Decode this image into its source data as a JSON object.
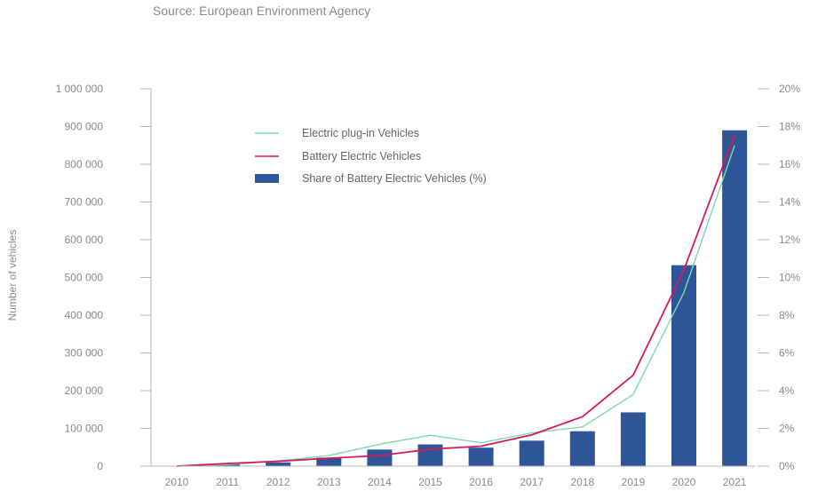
{
  "source": "Source: European Environment Agency",
  "chart_data": {
    "type": "bar",
    "title": "",
    "xlabel": "",
    "ylabel": "Number of vehicles",
    "ylim": [
      0,
      1000000
    ],
    "y_right_lim": [
      0,
      20
    ],
    "y_ticks": [
      "1 000 000",
      "900 000",
      "800 000",
      "700 000",
      "600 000",
      "500 000",
      "400 000",
      "300 000",
      "200 000",
      "100 000",
      "0"
    ],
    "y_right_ticks": [
      "20%",
      "18%",
      "16%",
      "14%",
      "12%",
      "10%",
      "8%",
      "6%",
      "4%",
      "2%",
      "0%"
    ],
    "categories": [
      "2010",
      "2011",
      "2012",
      "2013",
      "2014",
      "2015",
      "2016",
      "2017",
      "2018",
      "2019",
      "2020",
      "2021"
    ],
    "series": [
      {
        "name": "Electric plug-in Vehicles",
        "type": "line",
        "color": "#7fd9a8",
        "axis": "left",
        "values": [
          0,
          4000,
          14000,
          28000,
          58000,
          82000,
          62000,
          88000,
          104000,
          190000,
          460000,
          850000
        ]
      },
      {
        "name": "Battery Electric Vehicles",
        "type": "line",
        "color": "#d6195c",
        "axis": "left",
        "values": [
          0,
          7000,
          13000,
          21000,
          28000,
          45000,
          53000,
          83000,
          131000,
          241000,
          520000,
          878000
        ]
      },
      {
        "name": "Share of Battery Electric Vehicles (%)",
        "type": "bar",
        "color": "#2e5597",
        "axis": "right",
        "values": [
          0,
          0.1,
          0.2,
          0.45,
          0.88,
          1.15,
          0.98,
          1.35,
          1.85,
          2.85,
          10.65,
          17.8
        ]
      }
    ],
    "legend_placement": "top-center",
    "grid": false
  }
}
